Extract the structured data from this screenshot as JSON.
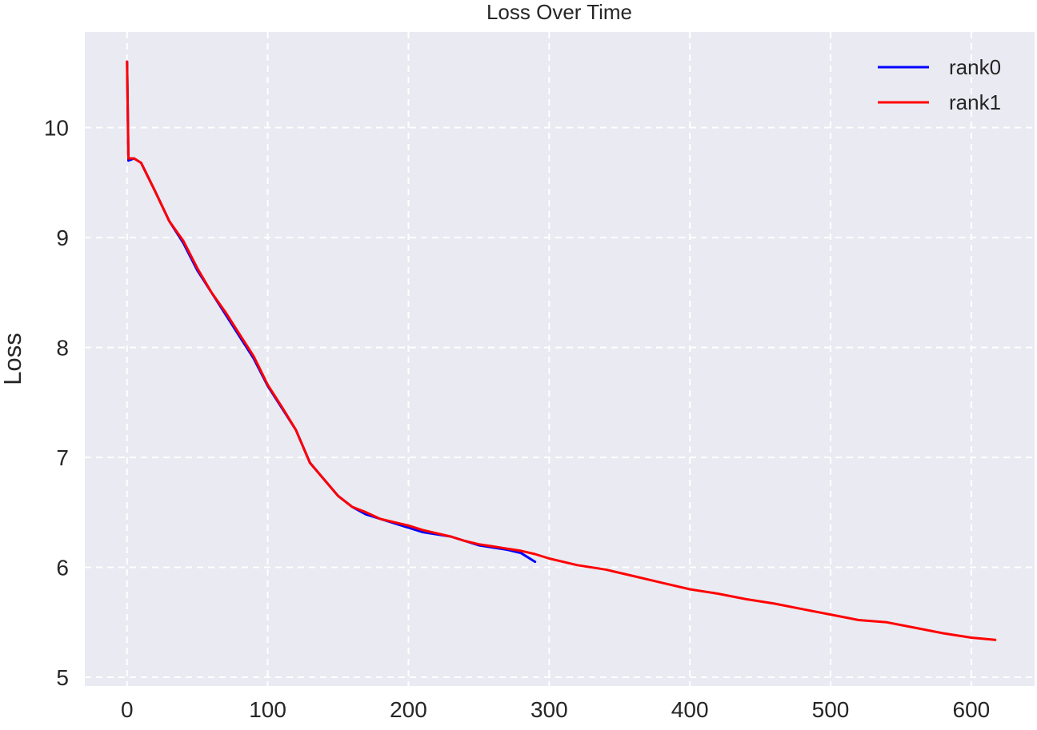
{
  "chart_data": {
    "type": "line",
    "title": "Loss Over Time",
    "xlabel": "",
    "ylabel": "Loss",
    "xlim": [
      -30,
      645
    ],
    "ylim": [
      4.92,
      10.87
    ],
    "xticks": [
      0,
      100,
      200,
      300,
      400,
      500,
      600
    ],
    "yticks": [
      5,
      6,
      7,
      8,
      9,
      10
    ],
    "grid": true,
    "legend_position": "top-right",
    "background": "#eaeaf2",
    "series": [
      {
        "name": "rank0",
        "color": "#0000ff",
        "x": [
          0,
          1,
          5,
          10,
          20,
          30,
          40,
          50,
          60,
          70,
          80,
          90,
          100,
          110,
          120,
          130,
          140,
          150,
          160,
          170,
          180,
          190,
          200,
          210,
          220,
          230,
          240,
          250,
          260,
          270,
          280,
          290
        ],
        "y": [
          10.6,
          9.7,
          9.72,
          9.68,
          9.42,
          9.15,
          8.95,
          8.7,
          8.5,
          8.3,
          8.1,
          7.9,
          7.65,
          7.45,
          7.25,
          6.95,
          6.8,
          6.65,
          6.55,
          6.48,
          6.44,
          6.4,
          6.36,
          6.32,
          6.3,
          6.28,
          6.24,
          6.2,
          6.18,
          6.16,
          6.13,
          6.05
        ]
      },
      {
        "name": "rank1",
        "color": "#ff0000",
        "x": [
          0,
          1,
          5,
          10,
          20,
          30,
          40,
          50,
          60,
          70,
          80,
          90,
          100,
          110,
          120,
          130,
          140,
          150,
          160,
          170,
          180,
          190,
          200,
          210,
          220,
          230,
          240,
          250,
          260,
          270,
          280,
          290,
          300,
          320,
          340,
          360,
          380,
          400,
          420,
          440,
          460,
          480,
          500,
          520,
          540,
          560,
          580,
          600,
          617
        ],
        "y": [
          10.6,
          9.72,
          9.72,
          9.68,
          9.42,
          9.15,
          8.97,
          8.72,
          8.5,
          8.32,
          8.12,
          7.92,
          7.66,
          7.46,
          7.25,
          6.95,
          6.8,
          6.65,
          6.55,
          6.5,
          6.44,
          6.41,
          6.38,
          6.34,
          6.31,
          6.28,
          6.24,
          6.21,
          6.19,
          6.17,
          6.15,
          6.12,
          6.08,
          6.02,
          5.98,
          5.92,
          5.86,
          5.8,
          5.76,
          5.71,
          5.67,
          5.62,
          5.57,
          5.52,
          5.5,
          5.45,
          5.4,
          5.36,
          5.34
        ]
      }
    ]
  }
}
